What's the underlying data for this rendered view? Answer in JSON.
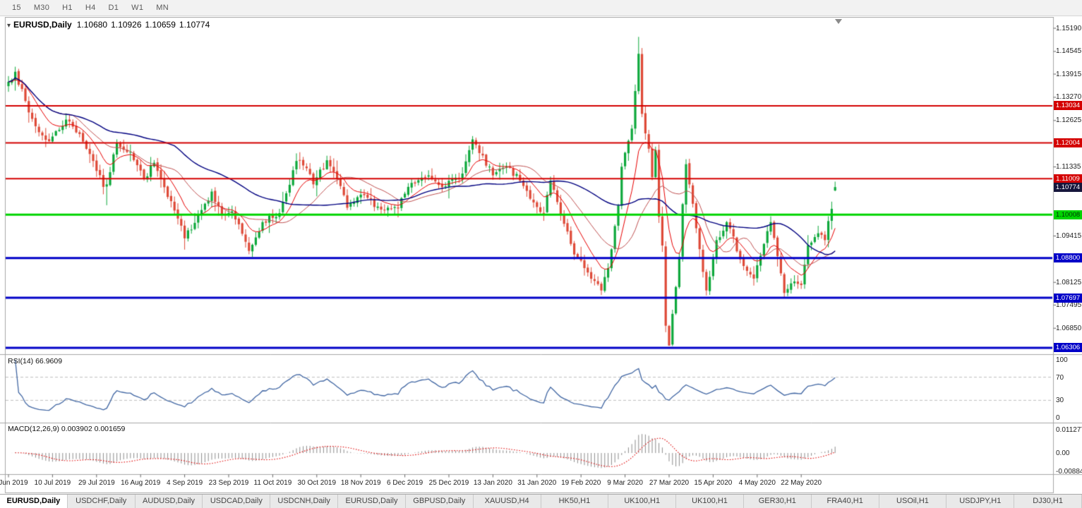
{
  "toolbar": {
    "timeframes": [
      "15",
      "M30",
      "H1",
      "H4",
      "D1",
      "W1",
      "MN"
    ]
  },
  "chart_header": {
    "dropdown_icon": "▾",
    "symbol": "EURUSD,Daily",
    "open": "1.10680",
    "high": "1.10926",
    "low": "1.10659",
    "close": "1.10774"
  },
  "price_axis": {
    "labels": [
      {
        "text": "1.15190",
        "value": 1.1519
      },
      {
        "text": "1.14545",
        "value": 1.14545
      },
      {
        "text": "1.13915",
        "value": 1.13915
      },
      {
        "text": "1.13270",
        "value": 1.1327
      },
      {
        "text": "1.12625",
        "value": 1.12625
      },
      {
        "text": "1.11335",
        "value": 1.11335
      },
      {
        "text": "1.09415",
        "value": 1.09415
      },
      {
        "text": "1.08125",
        "value": 1.08125
      },
      {
        "text": "1.07495",
        "value": 1.07495
      },
      {
        "text": "1.06850",
        "value": 1.0685
      }
    ]
  },
  "levels": [
    {
      "text": "1.13034",
      "value": 1.13034,
      "color": "#D40000",
      "label_fg": "#FFFFFF",
      "width": 2
    },
    {
      "text": "1.12004",
      "value": 1.12004,
      "color": "#D40000",
      "label_fg": "#FFFFFF",
      "width": 2
    },
    {
      "text": "1.11009",
      "value": 1.11009,
      "color": "#D40000",
      "label_fg": "#FFFFFF",
      "width": 2
    },
    {
      "text": "1.10008",
      "value": 1.10008,
      "color": "#00D400",
      "label_fg": "#00330a",
      "width": 3
    },
    {
      "text": "1.08800",
      "value": 1.088,
      "color": "#0000C8",
      "label_fg": "#FFFFFF",
      "width": 3
    },
    {
      "text": "1.07697",
      "value": 1.07697,
      "color": "#0000C8",
      "label_fg": "#FFFFFF",
      "width": 3
    },
    {
      "text": "1.06306",
      "value": 1.06306,
      "color": "#0000C8",
      "label_fg": "#FFFFFF",
      "width": 3
    }
  ],
  "current_price": {
    "text": "1.10774",
    "value": 1.10774,
    "bg": "#16163C",
    "fg": "#FFFFFF"
  },
  "rsi": {
    "label": "RSI(14) 66.9609",
    "line_color": "#4066A3",
    "guide_color": "#BEBEBE",
    "guide_levels": [
      70,
      30
    ],
    "axis_labels": [
      {
        "text": "100",
        "value": 100
      },
      {
        "text": "70",
        "value": 70
      },
      {
        "text": "30",
        "value": 30
      },
      {
        "text": "0",
        "value": 0
      }
    ]
  },
  "macd": {
    "label": "MACD(12,26,9) 0.003902 0.001659",
    "bar_color": "#8C8C8C",
    "signal_color": "#E00000",
    "axis_labels": [
      {
        "text": "0.011277",
        "value": 0.011277
      },
      {
        "text": "0.00",
        "value": 0
      },
      {
        "text": "-0.008845",
        "value": -0.008845
      }
    ]
  },
  "date_axis": {
    "labels": [
      "21 Jun 2019",
      "10 Jul 2019",
      "29 Jul 2019",
      "16 Aug 2019",
      "4 Sep 2019",
      "23 Sep 2019",
      "11 Oct 2019",
      "30 Oct 2019",
      "18 Nov 2019",
      "6 Dec 2019",
      "25 Dec 2019",
      "13 Jan 2020",
      "31 Jan 2020",
      "19 Feb 2020",
      "9 Mar 2020",
      "27 Mar 2020",
      "15 Apr 2020",
      "4 May 2020",
      "22 May 2020"
    ]
  },
  "tabs": [
    {
      "label": "EURUSD,Daily",
      "active": true
    },
    {
      "label": "USDCHF,Daily",
      "active": false
    },
    {
      "label": "AUDUSD,Daily",
      "active": false
    },
    {
      "label": "USDCAD,Daily",
      "active": false
    },
    {
      "label": "USDCNH,Daily",
      "active": false
    },
    {
      "label": "EURUSD,Daily",
      "active": false
    },
    {
      "label": "GBPUSD,Daily",
      "active": false
    },
    {
      "label": "XAUUSD,H4",
      "active": false
    },
    {
      "label": "HK50,H1",
      "active": false
    },
    {
      "label": "UK100,H1",
      "active": false
    },
    {
      "label": "UK100,H1",
      "active": false
    },
    {
      "label": "GER30,H1",
      "active": false
    },
    {
      "label": "FRA40,H1",
      "active": false
    },
    {
      "label": "USOil,H1",
      "active": false
    },
    {
      "label": "USDJPY,H1",
      "active": false
    },
    {
      "label": "DJ30,H1",
      "active": false
    }
  ],
  "colors": {
    "up": "#0DA83B",
    "down": "#DE4937",
    "border": "#A6A6A6",
    "tick": "#666666"
  },
  "chart_data": {
    "type": "candlestick",
    "symbol": "EURUSD",
    "timeframe": "Daily",
    "last_ohlc": {
      "open": 1.1068,
      "high": 1.10926,
      "low": 1.10659,
      "close": 1.10774
    },
    "candle_count": 245,
    "tick_every": 13,
    "y_axis": {
      "top_price": 1.15426,
      "bottom_price": 1.06168
    },
    "anchors": [
      [
        0,
        1.137
      ],
      [
        2,
        1.1398
      ],
      [
        6,
        1.1285
      ],
      [
        9,
        1.123
      ],
      [
        12,
        1.1205
      ],
      [
        17,
        1.1265
      ],
      [
        21,
        1.1225
      ],
      [
        25,
        1.115
      ],
      [
        28,
        1.1078
      ],
      [
        29,
        1.1085
      ],
      [
        32,
        1.12
      ],
      [
        36,
        1.1175
      ],
      [
        40,
        1.11
      ],
      [
        43,
        1.1145
      ],
      [
        47,
        1.105
      ],
      [
        50,
        1.099
      ],
      [
        52,
        1.0935
      ],
      [
        56,
        1.1
      ],
      [
        60,
        1.1065
      ],
      [
        63,
        1.1
      ],
      [
        66,
        1.101
      ],
      [
        71,
        1.09
      ],
      [
        75,
        1.098
      ],
      [
        80,
        1.1005
      ],
      [
        85,
        1.115
      ],
      [
        88,
        1.113
      ],
      [
        90,
        1.1085
      ],
      [
        94,
        1.1152
      ],
      [
        97,
        1.11
      ],
      [
        100,
        1.102
      ],
      [
        105,
        1.1055
      ],
      [
        110,
        1.1015
      ],
      [
        115,
        1.1018
      ],
      [
        118,
        1.1078
      ],
      [
        124,
        1.111
      ],
      [
        129,
        1.108
      ],
      [
        134,
        1.1115
      ],
      [
        137,
        1.121
      ],
      [
        139,
        1.1172
      ],
      [
        143,
        1.111
      ],
      [
        147,
        1.1135
      ],
      [
        151,
        1.1095
      ],
      [
        156,
        1.1022
      ],
      [
        158,
        1.1005
      ],
      [
        160,
        1.1095
      ],
      [
        163,
        1.1
      ],
      [
        167,
        1.089
      ],
      [
        171,
        1.084
      ],
      [
        175,
        1.079
      ],
      [
        177,
        1.0852
      ],
      [
        180,
        1.1026
      ],
      [
        181,
        1.1134
      ],
      [
        182,
        1.1173
      ],
      [
        184,
        1.124
      ],
      [
        186,
        1.1448
      ],
      [
        187,
        1.1281
      ],
      [
        189,
        1.1184
      ],
      [
        190,
        1.1105
      ],
      [
        191,
        1.118
      ],
      [
        192,
        1.0995
      ],
      [
        193,
        1.0915
      ],
      [
        194,
        1.0692
      ],
      [
        195,
        1.0637
      ],
      [
        196,
        1.0725
      ],
      [
        198,
        1.0883
      ],
      [
        199,
        1.103
      ],
      [
        200,
        1.1141
      ],
      [
        202,
        1.1031
      ],
      [
        203,
        1.0963
      ],
      [
        206,
        1.079
      ],
      [
        209,
        1.093
      ],
      [
        212,
        1.098
      ],
      [
        217,
        1.0858
      ],
      [
        220,
        1.0823
      ],
      [
        224,
        1.0955
      ],
      [
        225,
        1.098
      ],
      [
        229,
        1.0783
      ],
      [
        232,
        1.0815
      ],
      [
        234,
        1.0805
      ],
      [
        236,
        1.0916
      ],
      [
        239,
        1.0949
      ],
      [
        241,
        1.093
      ],
      [
        242,
        1.0983
      ],
      [
        243,
        1.1017
      ],
      [
        244,
        1.1077
      ]
    ],
    "overrides": [
      {
        "i": 2,
        "h": 1.1412
      },
      {
        "i": 29,
        "l": 1.1027
      },
      {
        "i": 186,
        "h": 1.1495
      },
      {
        "i": 195,
        "l": 1.0636
      },
      {
        "i": 244,
        "o": 1.1068,
        "h": 1.10926,
        "l": 1.10659,
        "c": 1.10774
      }
    ],
    "indicators": {
      "ma": [
        {
          "type": "EMA",
          "period": 10,
          "color": "#E80000",
          "width": 1
        },
        {
          "type": "SMA",
          "period": 20,
          "color": "#C05050",
          "width": 1
        },
        {
          "type": "SMA",
          "period": 50,
          "color": "#000080",
          "width": 1.4
        }
      ],
      "rsi_period": 14,
      "macd": [
        12,
        26,
        9
      ]
    }
  }
}
